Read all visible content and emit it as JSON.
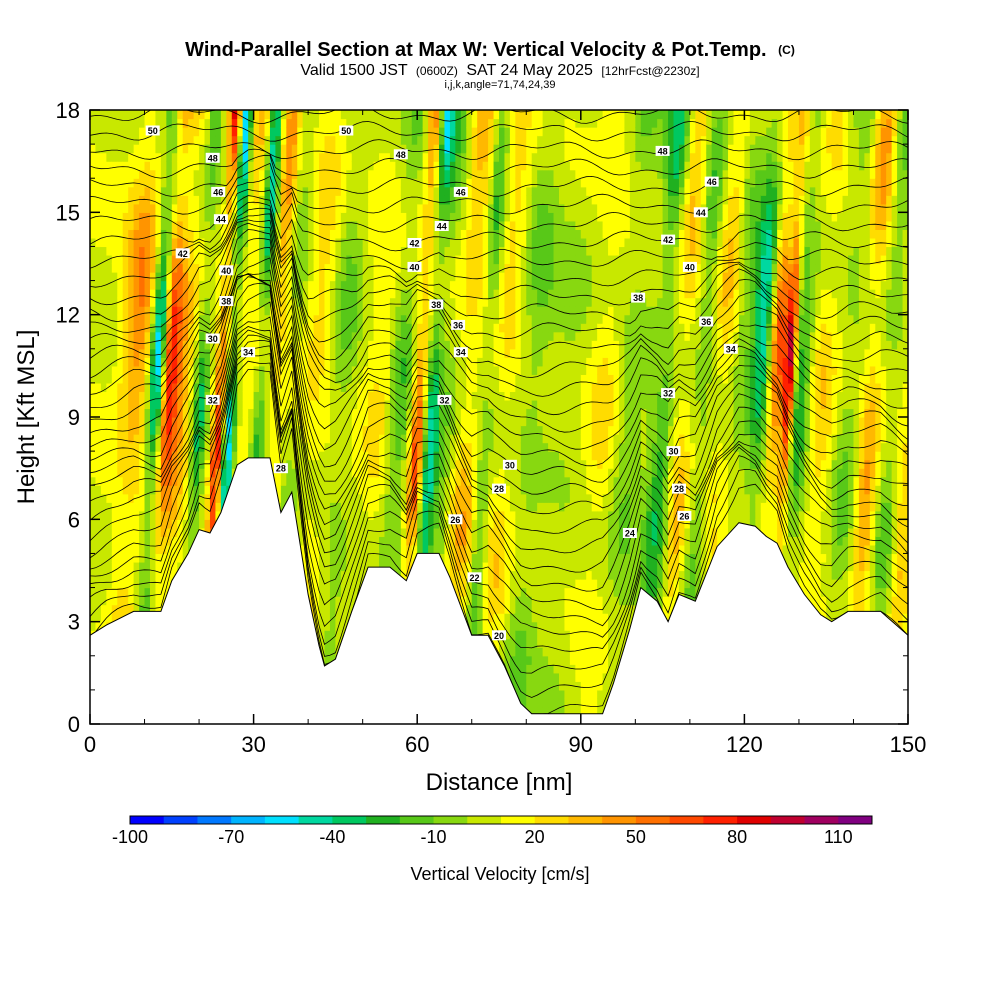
{
  "chart_data": {
    "type": "heatmap",
    "title": "Wind-Parallel Section at Max W: Vertical Velocity & Pot.Temp.",
    "title_mark": "(C)",
    "subtitle_parts": [
      "Valid 1500 JST",
      "(0600Z)",
      "SAT 24 May 2025",
      "[12hrFcst@2230z]"
    ],
    "subtitle2": "i,j,k,angle=71,74,24,39",
    "xlabel": "Distance [nm]",
    "ylabel": "Height [Kft MSL]",
    "xlim": [
      0,
      150
    ],
    "ylim": [
      0,
      18
    ],
    "xticks": [
      "0",
      "30",
      "60",
      "90",
      "120",
      "150"
    ],
    "yticks": [
      "0",
      "3",
      "6",
      "9",
      "12",
      "15",
      "18"
    ],
    "colorbar": {
      "label": "Vertical Velocity [cm/s]",
      "min": -100,
      "max": 120,
      "step": 10,
      "tick_labels": [
        "-100",
        "-70",
        "-40",
        "-10",
        "20",
        "50",
        "80",
        "110"
      ],
      "colors": [
        "#0000ff",
        "#0040ff",
        "#0078ff",
        "#00b4ff",
        "#00e0ff",
        "#00d8a0",
        "#00c860",
        "#20b020",
        "#58c818",
        "#88d810",
        "#c8e800",
        "#ffff00",
        "#ffdc00",
        "#ffb800",
        "#ff9400",
        "#ff7000",
        "#ff4800",
        "#ff2000",
        "#e00000",
        "#c00030",
        "#a00060",
        "#800080"
      ]
    },
    "terrain_kft": [
      [
        0,
        2.6
      ],
      [
        3,
        2.9
      ],
      [
        8,
        3.3
      ],
      [
        13,
        3.3
      ],
      [
        15,
        4.2
      ],
      [
        18,
        5.0
      ],
      [
        20,
        5.7
      ],
      [
        22,
        5.6
      ],
      [
        24,
        6.2
      ],
      [
        27,
        7.6
      ],
      [
        29,
        7.8
      ],
      [
        33,
        7.8
      ],
      [
        35,
        6.2
      ],
      [
        37,
        6.8
      ],
      [
        40,
        3.8
      ],
      [
        42,
        2.3
      ],
      [
        43,
        1.7
      ],
      [
        45,
        1.9
      ],
      [
        48,
        3.3
      ],
      [
        51,
        4.6
      ],
      [
        55,
        4.6
      ],
      [
        58,
        4.2
      ],
      [
        60,
        5.0
      ],
      [
        64,
        5.0
      ],
      [
        66,
        4.3
      ],
      [
        70,
        2.6
      ],
      [
        73,
        2.6
      ],
      [
        76,
        1.7
      ],
      [
        79,
        0.6
      ],
      [
        81,
        0.3
      ],
      [
        85,
        0.3
      ],
      [
        94,
        0.3
      ],
      [
        96,
        1.2
      ],
      [
        99,
        2.8
      ],
      [
        101,
        4.0
      ],
      [
        104,
        3.6
      ],
      [
        106,
        3.0
      ],
      [
        108,
        3.8
      ],
      [
        111,
        3.6
      ],
      [
        115,
        5.2
      ],
      [
        119,
        5.9
      ],
      [
        122,
        5.8
      ],
      [
        124,
        5.5
      ],
      [
        126,
        5.3
      ],
      [
        128,
        4.6
      ],
      [
        131,
        3.8
      ],
      [
        134,
        3.2
      ],
      [
        136,
        3.0
      ],
      [
        139,
        3.3
      ],
      [
        145,
        3.3
      ],
      [
        150,
        2.6
      ]
    ],
    "w_bands": [
      {
        "x": 7,
        "w": 3,
        "v": 45
      },
      {
        "x": 11,
        "w": 1.5,
        "v": -85
      },
      {
        "x": 13,
        "w": 1.8,
        "v": 75
      },
      {
        "x": 15.5,
        "w": 2,
        "v": 30
      },
      {
        "x": 19,
        "w": 1.2,
        "v": -40
      },
      {
        "x": 22.6,
        "w": 1.1,
        "v": 80
      },
      {
        "x": 24.6,
        "w": 1.2,
        "v": -80
      },
      {
        "x": 27,
        "w": 1.8,
        "v": 25
      },
      {
        "x": 30,
        "w": 1.2,
        "v": -60
      },
      {
        "x": 33,
        "w": 1.5,
        "v": 40
      },
      {
        "x": 36,
        "w": 2.2,
        "v": -15
      },
      {
        "x": 40,
        "w": 3,
        "v": 20
      },
      {
        "x": 45,
        "w": 2.5,
        "v": -20
      },
      {
        "x": 52,
        "w": 3,
        "v": 15
      },
      {
        "x": 55.5,
        "w": 2.2,
        "v": -30
      },
      {
        "x": 59.2,
        "w": 1.3,
        "v": 60
      },
      {
        "x": 61.5,
        "w": 1.4,
        "v": -55
      },
      {
        "x": 64,
        "w": 2.5,
        "v": -25
      },
      {
        "x": 68,
        "w": 3,
        "v": 30
      },
      {
        "x": 71.5,
        "w": 1.5,
        "v": -35
      },
      {
        "x": 75,
        "w": 2.5,
        "v": 20
      },
      {
        "x": 80,
        "w": 3,
        "v": -20
      },
      {
        "x": 86,
        "w": 4,
        "v": -10
      },
      {
        "x": 93,
        "w": 3,
        "v": 15
      },
      {
        "x": 98,
        "w": 3,
        "v": -20
      },
      {
        "x": 104,
        "w": 2.2,
        "v": -45
      },
      {
        "x": 107.5,
        "w": 2.5,
        "v": 30
      },
      {
        "x": 111,
        "w": 2,
        "v": -30
      },
      {
        "x": 115,
        "w": 2.5,
        "v": 25
      },
      {
        "x": 118,
        "w": 2.2,
        "v": -25
      },
      {
        "x": 121.5,
        "w": 1.8,
        "v": -60
      },
      {
        "x": 124.5,
        "w": 1.5,
        "v": 55
      },
      {
        "x": 126.8,
        "w": 1,
        "v": 85
      },
      {
        "x": 129,
        "w": 1.8,
        "v": -40
      },
      {
        "x": 133,
        "w": 2.5,
        "v": 20
      },
      {
        "x": 138,
        "w": 2.5,
        "v": -20
      },
      {
        "x": 142,
        "w": 2,
        "v": 40
      },
      {
        "x": 146,
        "w": 2.5,
        "v": -25
      },
      {
        "x": 149,
        "w": 2,
        "v": 35
      }
    ],
    "theta_range_k": [
      18,
      51
    ],
    "theta_labels": [
      {
        "text": "50",
        "x": 11.5,
        "y": 17.4
      },
      {
        "text": "50",
        "x": 47,
        "y": 17.4
      },
      {
        "text": "48",
        "x": 22.5,
        "y": 16.6
      },
      {
        "text": "48",
        "x": 57,
        "y": 16.7
      },
      {
        "text": "48",
        "x": 105,
        "y": 16.8
      },
      {
        "text": "46",
        "x": 23.5,
        "y": 15.6
      },
      {
        "text": "46",
        "x": 68,
        "y": 15.6
      },
      {
        "text": "46",
        "x": 114,
        "y": 15.9
      },
      {
        "text": "44",
        "x": 24,
        "y": 14.8
      },
      {
        "text": "44",
        "x": 64.5,
        "y": 14.6
      },
      {
        "text": "44",
        "x": 112,
        "y": 15.0
      },
      {
        "text": "42",
        "x": 17,
        "y": 13.8
      },
      {
        "text": "42",
        "x": 59.5,
        "y": 14.1
      },
      {
        "text": "42",
        "x": 106,
        "y": 14.2
      },
      {
        "text": "40",
        "x": 25,
        "y": 13.3
      },
      {
        "text": "40",
        "x": 59.5,
        "y": 13.4
      },
      {
        "text": "40",
        "x": 110,
        "y": 13.4
      },
      {
        "text": "38",
        "x": 25,
        "y": 12.4
      },
      {
        "text": "38",
        "x": 63.5,
        "y": 12.3
      },
      {
        "text": "38",
        "x": 100.5,
        "y": 12.5
      },
      {
        "text": "36",
        "x": 67.5,
        "y": 11.7
      },
      {
        "text": "36",
        "x": 113,
        "y": 11.8
      },
      {
        "text": "34",
        "x": 29,
        "y": 10.9
      },
      {
        "text": "34",
        "x": 68,
        "y": 10.9
      },
      {
        "text": "34",
        "x": 117.5,
        "y": 11.0
      },
      {
        "text": "32",
        "x": 22.5,
        "y": 9.5
      },
      {
        "text": "32",
        "x": 65,
        "y": 9.5
      },
      {
        "text": "32",
        "x": 106,
        "y": 9.7
      },
      {
        "text": "30",
        "x": 22.5,
        "y": 11.3
      },
      {
        "text": "30",
        "x": 77,
        "y": 7.6
      },
      {
        "text": "30",
        "x": 107,
        "y": 8.0
      },
      {
        "text": "28",
        "x": 35,
        "y": 7.5
      },
      {
        "text": "28",
        "x": 75,
        "y": 6.9
      },
      {
        "text": "28",
        "x": 108,
        "y": 6.9
      },
      {
        "text": "26",
        "x": 67,
        "y": 6.0
      },
      {
        "text": "26",
        "x": 109,
        "y": 6.1
      },
      {
        "text": "24",
        "x": 99,
        "y": 5.6
      },
      {
        "text": "22",
        "x": 70.5,
        "y": 4.3
      },
      {
        "text": "20",
        "x": 75,
        "y": 2.6
      }
    ]
  }
}
